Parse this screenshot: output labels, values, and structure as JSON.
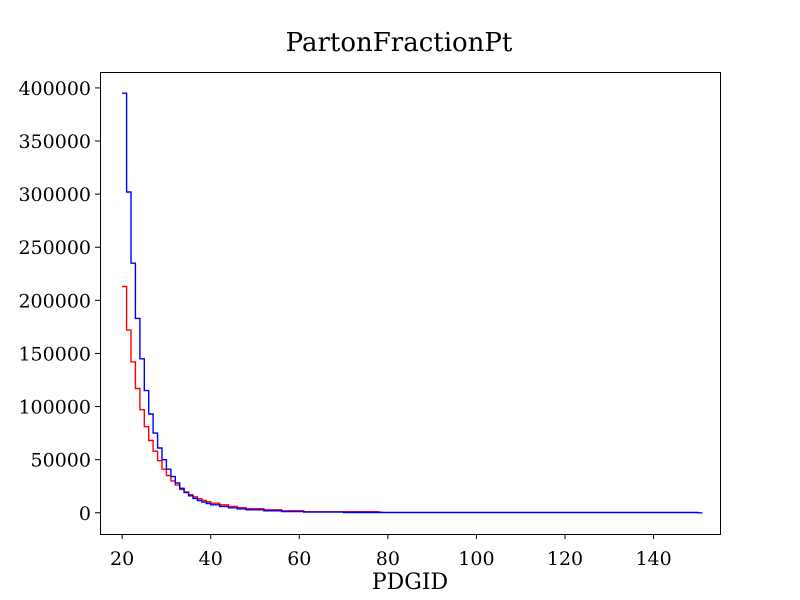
{
  "chart_data": {
    "type": "line",
    "title": "PartonFractionPt",
    "xlabel": "PDGID",
    "ylabel": "",
    "xlim": [
      15,
      155
    ],
    "ylim": [
      -20000,
      415000
    ],
    "xticks": [
      20,
      40,
      60,
      80,
      100,
      120,
      140
    ],
    "xtick_labels": [
      "20",
      "40",
      "60",
      "80",
      "100",
      "120",
      "140"
    ],
    "yticks": [
      0,
      50000,
      100000,
      150000,
      200000,
      250000,
      300000,
      350000,
      400000
    ],
    "ytick_labels": [
      "0",
      "50000",
      "100000",
      "150000",
      "200000",
      "250000",
      "300000",
      "350000",
      "400000"
    ],
    "grid": false,
    "step": "post",
    "series": [
      {
        "color": "#ff0000",
        "x": [
          20,
          21,
          22,
          23,
          24,
          25,
          26,
          27,
          28,
          29,
          30,
          31,
          32,
          33,
          34,
          35,
          36,
          37,
          38,
          39,
          40,
          42,
          44,
          46,
          48,
          52,
          56,
          61,
          78
        ],
        "values": [
          213000,
          172000,
          142000,
          117000,
          97000,
          81000,
          68000,
          58000,
          49000,
          41000,
          35000,
          30000,
          26000,
          22000,
          19500,
          17000,
          15000,
          13200,
          11600,
          10300,
          9000,
          7500,
          6000,
          4800,
          3800,
          2800,
          1800,
          1000,
          500
        ]
      },
      {
        "color": "#0000ff",
        "x": [
          20,
          21,
          22,
          23,
          24,
          25,
          26,
          27,
          28,
          29,
          30,
          31,
          32,
          33,
          34,
          35,
          36,
          37,
          38,
          39,
          40,
          42,
          44,
          46,
          48,
          52,
          56,
          61,
          70,
          150
        ],
        "values": [
          395000,
          302000,
          235000,
          183000,
          145000,
          115000,
          93000,
          75000,
          61000,
          50000,
          41000,
          34000,
          28000,
          23000,
          19000,
          16000,
          13500,
          11500,
          10000,
          8700,
          7500,
          6000,
          4700,
          3600,
          2800,
          1800,
          1100,
          600,
          200,
          0
        ]
      }
    ]
  }
}
